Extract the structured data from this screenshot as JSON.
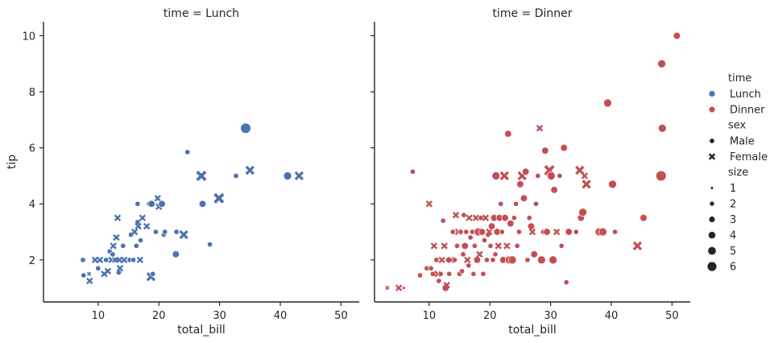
{
  "chart_data": {
    "type": "scatter",
    "colors": {
      "Lunch": "#4c72b0",
      "Dinner": "#c44e52"
    },
    "xlim": [
      1,
      53
    ],
    "ylim": [
      0.5,
      10.5
    ],
    "xticks": [
      10,
      20,
      30,
      40,
      50
    ],
    "yticks": [
      2,
      4,
      6,
      8,
      10
    ],
    "xlabel": "total_bill",
    "ylabel": "tip",
    "panels": [
      {
        "title": "time = Lunch",
        "time": "Lunch",
        "points": [
          [
            7.5,
            2.0,
            "Male",
            2
          ],
          [
            7.6,
            1.45,
            "Male",
            2
          ],
          [
            8.5,
            1.5,
            "Female",
            1
          ],
          [
            8.6,
            1.25,
            "Female",
            2
          ],
          [
            9.5,
            2.0,
            "Female",
            2
          ],
          [
            10.0,
            1.7,
            "Male",
            2
          ],
          [
            10.3,
            2.0,
            "Female",
            2
          ],
          [
            11.0,
            1.5,
            "Female",
            2
          ],
          [
            11.3,
            2.0,
            "Male",
            2
          ],
          [
            11.6,
            1.6,
            "Female",
            2
          ],
          [
            11.9,
            2.3,
            "Male",
            2
          ],
          [
            12.2,
            2.0,
            "Female",
            2
          ],
          [
            12.4,
            2.2,
            "Male",
            2
          ],
          [
            12.5,
            2.5,
            "Female",
            2
          ],
          [
            12.8,
            2.0,
            "Male",
            2
          ],
          [
            13.0,
            2.8,
            "Female",
            2
          ],
          [
            13.2,
            3.5,
            "Female",
            2
          ],
          [
            13.4,
            1.55,
            "Male",
            2
          ],
          [
            13.5,
            2.0,
            "Female",
            2
          ],
          [
            13.6,
            1.7,
            "Female",
            2
          ],
          [
            14.1,
            2.5,
            "Male",
            2
          ],
          [
            14.3,
            2.0,
            "Female",
            2
          ],
          [
            15.2,
            2.0,
            "Male",
            2
          ],
          [
            15.4,
            2.9,
            "Male",
            2
          ],
          [
            15.8,
            2.0,
            "Male",
            2
          ],
          [
            16.0,
            3.0,
            "Female",
            2
          ],
          [
            16.3,
            2.5,
            "Male",
            2
          ],
          [
            16.5,
            3.35,
            "Male",
            2
          ],
          [
            16.5,
            4.0,
            "Male",
            2
          ],
          [
            16.6,
            3.2,
            "Female",
            2
          ],
          [
            16.9,
            2.0,
            "Female",
            2
          ],
          [
            17.0,
            2.7,
            "Male",
            2
          ],
          [
            17.3,
            3.5,
            "Female",
            2
          ],
          [
            18.0,
            3.2,
            "Female",
            2
          ],
          [
            18.4,
            4.0,
            "Male",
            2
          ],
          [
            18.7,
            1.4,
            "Female",
            3
          ],
          [
            18.8,
            4.0,
            "Male",
            3
          ],
          [
            19.0,
            1.5,
            "Male",
            2
          ],
          [
            19.5,
            3.0,
            "Male",
            2
          ],
          [
            19.8,
            4.2,
            "Female",
            2
          ],
          [
            20.0,
            3.9,
            "Female",
            2
          ],
          [
            20.5,
            4.0,
            "Male",
            3
          ],
          [
            20.8,
            2.9,
            "Male",
            2
          ],
          [
            21.0,
            3.0,
            "Male",
            2
          ],
          [
            22.8,
            2.2,
            "Male",
            3
          ],
          [
            22.9,
            3.0,
            "Male",
            2
          ],
          [
            24.1,
            2.9,
            "Female",
            3
          ],
          [
            24.7,
            5.85,
            "Male",
            2
          ],
          [
            27.0,
            5.0,
            "Female",
            4
          ],
          [
            27.2,
            4.0,
            "Male",
            3
          ],
          [
            28.4,
            2.55,
            "Male",
            2
          ],
          [
            29.9,
            4.2,
            "Female",
            4
          ],
          [
            32.7,
            5.0,
            "Male",
            2
          ],
          [
            34.3,
            6.7,
            "Male",
            6
          ],
          [
            35.0,
            5.2,
            "Female",
            3
          ],
          [
            41.2,
            5.0,
            "Male",
            4
          ],
          [
            43.1,
            5.0,
            "Female",
            3
          ]
        ]
      },
      {
        "title": "time = Dinner",
        "time": "Dinner",
        "points": [
          [
            3.1,
            1.0,
            "Female",
            1
          ],
          [
            5.0,
            1.0,
            "Female",
            2
          ],
          [
            5.8,
            1.0,
            "Male",
            1
          ],
          [
            7.3,
            5.15,
            "Male",
            2
          ],
          [
            8.5,
            1.45,
            "Male",
            2
          ],
          [
            9.6,
            1.7,
            "Male",
            2
          ],
          [
            10.0,
            4.0,
            "Female",
            2
          ],
          [
            10.3,
            1.7,
            "Male",
            2
          ],
          [
            10.6,
            1.5,
            "Male",
            2
          ],
          [
            10.8,
            2.5,
            "Female",
            2
          ],
          [
            11.2,
            2.0,
            "Male",
            2
          ],
          [
            11.4,
            1.5,
            "Female",
            2
          ],
          [
            11.6,
            1.25,
            "Male",
            2
          ],
          [
            11.9,
            1.5,
            "Male",
            2
          ],
          [
            12.1,
            2.0,
            "Female",
            2
          ],
          [
            12.3,
            3.4,
            "Male",
            2
          ],
          [
            12.5,
            2.5,
            "Female",
            2
          ],
          [
            12.7,
            1.0,
            "Male",
            3
          ],
          [
            12.9,
            1.1,
            "Female",
            2
          ],
          [
            13.1,
            2.0,
            "Male",
            2
          ],
          [
            13.3,
            1.5,
            "Male",
            2
          ],
          [
            13.6,
            2.0,
            "Female",
            2
          ],
          [
            13.9,
            3.0,
            "Male",
            2
          ],
          [
            14.2,
            2.0,
            "Male",
            2
          ],
          [
            14.4,
            3.6,
            "Female",
            2
          ],
          [
            14.6,
            2.5,
            "Male",
            2
          ],
          [
            14.8,
            3.0,
            "Female",
            2
          ],
          [
            15.0,
            1.5,
            "Male",
            2
          ],
          [
            15.2,
            3.0,
            "Male",
            2
          ],
          [
            15.4,
            1.6,
            "Male",
            2
          ],
          [
            15.6,
            2.2,
            "Male",
            2
          ],
          [
            15.7,
            3.6,
            "Male",
            2
          ],
          [
            15.9,
            2.5,
            "Male",
            3
          ],
          [
            16.1,
            3.0,
            "Male",
            2
          ],
          [
            16.3,
            2.0,
            "Female",
            2
          ],
          [
            16.5,
            1.8,
            "Male",
            2
          ],
          [
            16.6,
            3.5,
            "Female",
            2
          ],
          [
            16.8,
            2.8,
            "Male",
            2
          ],
          [
            17.1,
            3.0,
            "Male",
            2
          ],
          [
            17.3,
            1.5,
            "Male",
            2
          ],
          [
            17.5,
            2.5,
            "Male",
            2
          ],
          [
            17.7,
            3.5,
            "Female",
            2
          ],
          [
            17.9,
            2.0,
            "Male",
            3
          ],
          [
            18.1,
            3.0,
            "Male",
            4
          ],
          [
            18.3,
            2.2,
            "Female",
            2
          ],
          [
            18.5,
            3.5,
            "Male",
            2
          ],
          [
            18.7,
            3.0,
            "Male",
            3
          ],
          [
            18.9,
            1.5,
            "Male",
            2
          ],
          [
            19.1,
            2.7,
            "Male",
            2
          ],
          [
            19.3,
            3.5,
            "Female",
            2
          ],
          [
            19.5,
            2.0,
            "Male",
            2
          ],
          [
            19.7,
            2.9,
            "Male",
            2
          ],
          [
            19.9,
            3.0,
            "Female",
            2
          ],
          [
            20.1,
            2.5,
            "Male",
            2
          ],
          [
            20.3,
            3.2,
            "Male",
            3
          ],
          [
            20.5,
            2.0,
            "Male",
            2
          ],
          [
            20.7,
            3.5,
            "Male",
            3
          ],
          [
            20.9,
            2.2,
            "Male",
            2
          ],
          [
            21.0,
            5.0,
            "Male",
            4
          ],
          [
            21.2,
            3.0,
            "Male",
            3
          ],
          [
            21.4,
            2.5,
            "Female",
            2
          ],
          [
            21.6,
            3.5,
            "Male",
            3
          ],
          [
            21.8,
            4.0,
            "Male",
            2
          ],
          [
            22.0,
            3.0,
            "Male",
            2
          ],
          [
            22.2,
            2.0,
            "Male",
            3
          ],
          [
            22.4,
            5.0,
            "Female",
            3
          ],
          [
            22.5,
            3.5,
            "Male",
            3
          ],
          [
            22.8,
            2.5,
            "Female",
            2
          ],
          [
            23.0,
            6.5,
            "Male",
            3
          ],
          [
            23.2,
            2.0,
            "Male",
            4
          ],
          [
            23.4,
            3.3,
            "Male",
            3
          ],
          [
            23.7,
            2.0,
            "Male",
            4
          ],
          [
            24.0,
            3.5,
            "Male",
            2
          ],
          [
            24.3,
            4.0,
            "Male",
            2
          ],
          [
            24.5,
            2.5,
            "Male",
            2
          ],
          [
            24.8,
            3.0,
            "Male",
            2
          ],
          [
            25.0,
            4.7,
            "Male",
            3
          ],
          [
            25.3,
            5.0,
            "Female",
            3
          ],
          [
            25.6,
            4.2,
            "Male",
            3
          ],
          [
            25.9,
            5.15,
            "Male",
            3
          ],
          [
            26.2,
            2.0,
            "Male",
            2
          ],
          [
            26.5,
            3.5,
            "Male",
            2
          ],
          [
            26.8,
            3.2,
            "Male",
            3
          ],
          [
            27.0,
            3.0,
            "Female",
            2
          ],
          [
            27.3,
            2.2,
            "Male",
            3
          ],
          [
            27.6,
            4.0,
            "Male",
            2
          ],
          [
            27.9,
            5.0,
            "Male",
            2
          ],
          [
            28.2,
            6.7,
            "Female",
            2
          ],
          [
            28.5,
            2.0,
            "Male",
            4
          ],
          [
            28.8,
            3.0,
            "Male",
            2
          ],
          [
            29.1,
            5.9,
            "Male",
            3
          ],
          [
            29.4,
            3.0,
            "Male",
            3
          ],
          [
            29.8,
            5.2,
            "Female",
            4
          ],
          [
            30.1,
            5.0,
            "Male",
            4
          ],
          [
            30.4,
            2.0,
            "Male",
            4
          ],
          [
            30.6,
            4.5,
            "Male",
            3
          ],
          [
            31.0,
            3.0,
            "Female",
            2
          ],
          [
            31.5,
            5.0,
            "Male",
            2
          ],
          [
            31.8,
            2.5,
            "Male",
            2
          ],
          [
            32.2,
            6.0,
            "Male",
            3
          ],
          [
            32.6,
            1.2,
            "Male",
            2
          ],
          [
            33.0,
            3.0,
            "Male",
            3
          ],
          [
            34.2,
            3.0,
            "Male",
            2
          ],
          [
            34.8,
            5.2,
            "Female",
            3
          ],
          [
            35.0,
            3.5,
            "Male",
            3
          ],
          [
            35.3,
            3.7,
            "Male",
            4
          ],
          [
            35.6,
            5.0,
            "Female",
            2
          ],
          [
            35.9,
            4.7,
            "Female",
            3
          ],
          [
            38.0,
            3.0,
            "Male",
            4
          ],
          [
            38.6,
            3.0,
            "Male",
            4
          ],
          [
            39.4,
            7.6,
            "Male",
            4
          ],
          [
            40.2,
            4.7,
            "Male",
            4
          ],
          [
            40.6,
            3.0,
            "Male",
            2
          ],
          [
            44.3,
            2.5,
            "Female",
            3
          ],
          [
            45.3,
            3.5,
            "Male",
            3
          ],
          [
            48.2,
            5.0,
            "Male",
            6
          ],
          [
            48.3,
            9.0,
            "Male",
            4
          ],
          [
            48.4,
            6.7,
            "Male",
            4
          ],
          [
            50.8,
            10.0,
            "Male",
            3
          ]
        ]
      }
    ],
    "legend": {
      "position": "right",
      "time_title": "time",
      "time_items": [
        "Lunch",
        "Dinner"
      ],
      "sex_title": "sex",
      "sex_items": [
        "Male",
        "Female"
      ],
      "size_title": "size",
      "size_items": [
        "1",
        "2",
        "3",
        "4",
        "5",
        "6"
      ]
    }
  }
}
